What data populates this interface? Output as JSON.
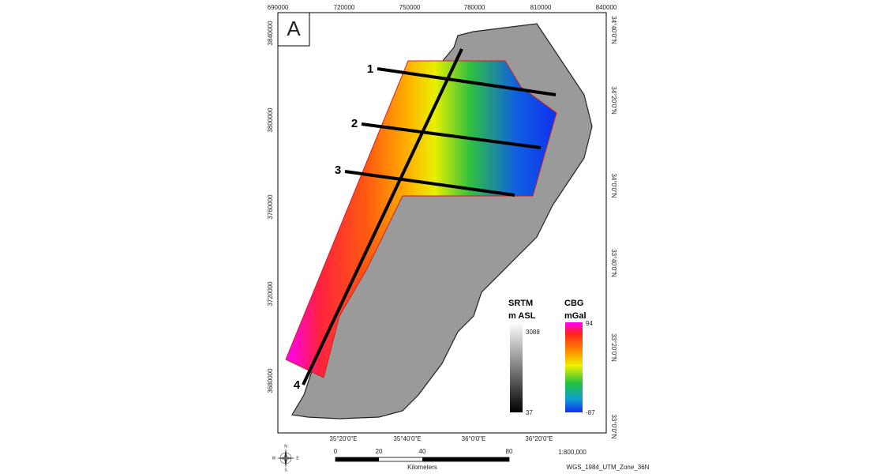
{
  "panel_label": "A",
  "top_ticks": [
    "690000",
    "720000",
    "750000",
    "780000",
    "810000",
    "840000"
  ],
  "left_ticks": [
    "3840000",
    "3800000",
    "3760000",
    "3720000",
    "3680000"
  ],
  "right_ticks": [
    "34°40'0\"N",
    "34°20'0\"N",
    "34°0'0\"N",
    "33°40'0\"N",
    "33°20'0\"N",
    "33°0'0\"N"
  ],
  "bottom_ticks": [
    "35°20'0\"E",
    "35°40'0\"E",
    "36°0'0\"E",
    "36°20'0\"E"
  ],
  "profiles": [
    "1",
    "2",
    "3",
    "4"
  ],
  "legend": {
    "srtm": {
      "title": "SRTM",
      "unit": "m ASL",
      "max": "3088",
      "min": "37"
    },
    "cbg": {
      "title": "CBG",
      "unit": "mGal",
      "max": "94",
      "min": "-87"
    }
  },
  "scale_bar": {
    "ticks": [
      "0",
      "20",
      "40",
      "80"
    ],
    "unit": "Kilometers",
    "ratio": "1:800,000"
  },
  "projection": "WGS_1984_UTM_Zone_36N",
  "compass": [
    "N",
    "E",
    "S",
    "W"
  ]
}
